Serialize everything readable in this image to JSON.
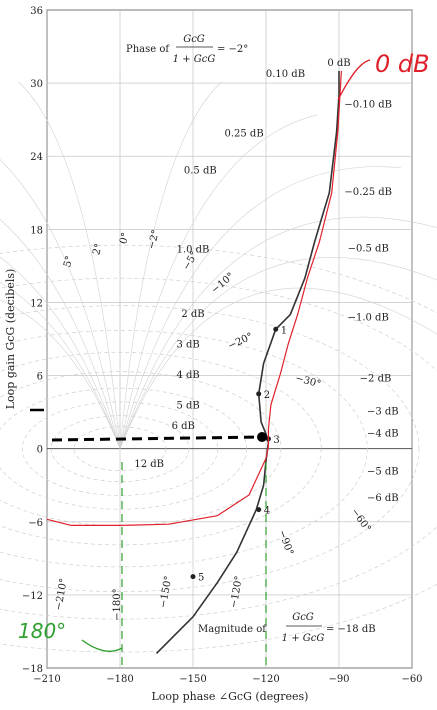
{
  "chart_data": {
    "type": "line",
    "xlabel": "Loop phase ∠GcG (degrees)",
    "ylabel": "Loop gain GcG (decibels)",
    "xlim": [
      -210,
      -60
    ],
    "ylim": [
      -18,
      36
    ],
    "xticks": [
      "-210",
      "-180",
      "-150",
      "-120",
      "-90",
      "-60"
    ],
    "yticks": [
      "-18",
      "-12",
      "-6",
      "0",
      "6",
      "12",
      "18",
      "24",
      "30",
      "36"
    ],
    "grid": true,
    "phase_title": {
      "prefix": "Phase of",
      "num": "GcG",
      "den": "1 + GcG",
      "value": "= −2°"
    },
    "magnitude_title": {
      "prefix": "Magnitude of",
      "num": "GcG",
      "den": "1 + GcG",
      "value": "= −18 dB"
    },
    "magnitude_labels": [
      {
        "text": "0 dB",
        "x": -90,
        "y": 31.4
      },
      {
        "text": "0.10 dB",
        "x": -112,
        "y": 30.5
      },
      {
        "text": "−0.10 dB",
        "x": -78,
        "y": 28
      },
      {
        "text": "0.25 dB",
        "x": -129,
        "y": 25.6
      },
      {
        "text": "−0.25 dB",
        "x": -78,
        "y": 20.8
      },
      {
        "text": "0.5 dB",
        "x": -147,
        "y": 22.6
      },
      {
        "text": "1.0 dB",
        "x": -150,
        "y": 16.1
      },
      {
        "text": "−0.5 dB",
        "x": -78,
        "y": 16.2
      },
      {
        "text": "2 dB",
        "x": -150,
        "y": 10.8
      },
      {
        "text": "−1.0 dB",
        "x": -78,
        "y": 10.5
      },
      {
        "text": "3 dB",
        "x": -152,
        "y": 8.3
      },
      {
        "text": "4 dB",
        "x": -152,
        "y": 5.8
      },
      {
        "text": "−2 dB",
        "x": -75,
        "y": 5.5
      },
      {
        "text": "5 dB",
        "x": -152,
        "y": 3.3
      },
      {
        "text": "−3 dB",
        "x": -72,
        "y": 2.8
      },
      {
        "text": "6 dB",
        "x": -154,
        "y": 1.6
      },
      {
        "text": "−4 dB",
        "x": -72,
        "y": 1.0
      },
      {
        "text": "12 dB",
        "x": -168,
        "y": -1.5
      },
      {
        "text": "−5 dB",
        "x": -72,
        "y": -2.1
      },
      {
        "text": "−6 dB",
        "x": -72,
        "y": -4.3
      }
    ],
    "phase_labels": [
      {
        "text": "5°",
        "x": -200,
        "y": 15.3,
        "rot": -75
      },
      {
        "text": "2°",
        "x": -188,
        "y": 16.3,
        "rot": -75
      },
      {
        "text": "0°",
        "x": -177,
        "y": 17.2,
        "rot": -75
      },
      {
        "text": "−2°",
        "x": -165,
        "y": 17.1,
        "rot": -75
      },
      {
        "text": "−5°",
        "x": -150,
        "y": 15.3,
        "rot": -60
      },
      {
        "text": "−10°",
        "x": -137,
        "y": 13.4,
        "rot": -40
      },
      {
        "text": "−20°",
        "x": -130,
        "y": 8.6,
        "rot": -25
      },
      {
        "text": "−30°",
        "x": -103,
        "y": 5.3,
        "rot": 15
      },
      {
        "text": "−60°",
        "x": -82,
        "y": -6.0,
        "rot": 55
      },
      {
        "text": "−90°",
        "x": -113,
        "y": -7.8,
        "rot": 70
      },
      {
        "text": "−120°",
        "x": -131,
        "y": -11.8,
        "rot": -80
      },
      {
        "text": "−150°",
        "x": -160,
        "y": -11.8,
        "rot": -80
      },
      {
        "text": "−180°",
        "x": -180,
        "y": -12.8,
        "rot": -90
      },
      {
        "text": "−210°",
        "x": -203,
        "y": -12.0,
        "rot": -80
      }
    ],
    "series": [
      {
        "color": "#333333",
        "points": [
          [
            -90,
            31
          ],
          [
            -90,
            29
          ],
          [
            -91,
            26
          ],
          [
            -94,
            21
          ],
          [
            -100,
            17
          ],
          [
            -104,
            14
          ],
          [
            -110,
            11
          ],
          [
            -116,
            9.8
          ],
          [
            -121,
            7
          ],
          [
            -123,
            4.5
          ],
          [
            -122,
            2.2
          ],
          [
            -120,
            1.2
          ],
          [
            -119,
            0.5
          ],
          [
            -120,
            -1
          ],
          [
            -121,
            -3
          ],
          [
            -124,
            -5
          ],
          [
            -132,
            -8.5
          ],
          [
            -140,
            -11
          ],
          [
            -150,
            -13.8
          ],
          [
            -165,
            -16.8
          ]
        ],
        "markers": [
          {
            "label": "1",
            "x": -116,
            "y": 9.8
          },
          {
            "label": "2",
            "x": -123,
            "y": 4.5
          },
          {
            "label": "3",
            "x": -119,
            "y": 0.8
          },
          {
            "label": "4",
            "x": -123,
            "y": -5
          },
          {
            "label": "5",
            "x": -150,
            "y": -10.5
          }
        ]
      },
      {
        "color": "#e0202a",
        "points": [
          [
            -89,
            31
          ],
          [
            -90.5,
            26
          ],
          [
            -93,
            21
          ],
          [
            -98,
            17
          ],
          [
            -103,
            14
          ],
          [
            -107,
            11
          ],
          [
            -111,
            8.5
          ],
          [
            -114,
            6.2
          ],
          [
            -118,
            3.6
          ],
          [
            -119,
            1.6
          ],
          [
            -119,
            0.2
          ],
          [
            -120,
            -0.8
          ],
          [
            -127,
            -3.8
          ],
          [
            -140,
            -5.5
          ],
          [
            -160,
            -6.2
          ],
          [
            -180,
            -6.3
          ],
          [
            -200,
            -6.3
          ],
          [
            -210,
            -5.8
          ]
        ]
      }
    ],
    "annotations": {
      "handwritten_0db": "0 dB",
      "handwritten_180": "180°"
    }
  }
}
